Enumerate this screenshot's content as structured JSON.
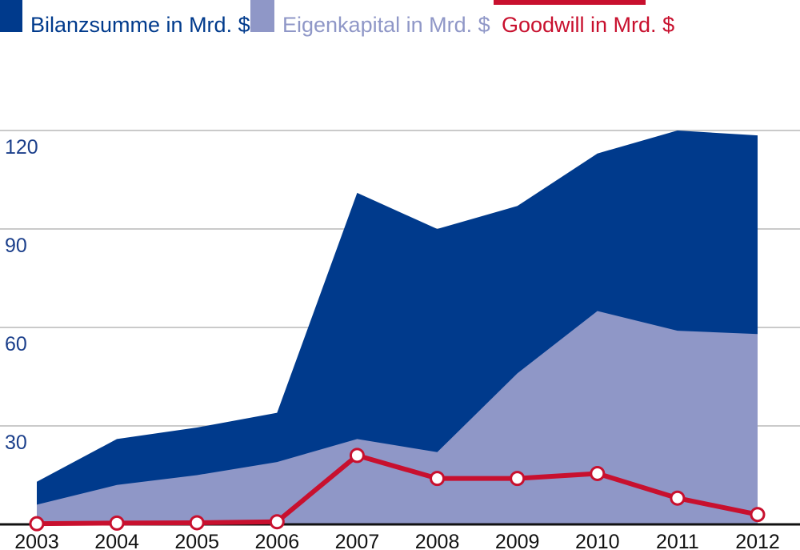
{
  "chart_data": {
    "type": "area",
    "title": "",
    "xlabel": "",
    "ylabel": "",
    "categories": [
      "2003",
      "2004",
      "2005",
      "2006",
      "2007",
      "2008",
      "2009",
      "2010",
      "2011",
      "2012"
    ],
    "ylim": [
      0,
      120
    ],
    "yticks": [
      30,
      60,
      90,
      120
    ],
    "grid": true,
    "legend_position": "top",
    "series": [
      {
        "name": "Bilanzsumme in Mrd. $",
        "type": "area",
        "color": "#003a8c",
        "values": [
          13,
          26,
          29.5,
          34,
          101,
          90,
          97,
          113,
          120,
          118.5
        ]
      },
      {
        "name": "Eigenkapital in Mrd. $",
        "type": "area",
        "color": "#8f97c7",
        "values": [
          6,
          12,
          15,
          19,
          26,
          22,
          46,
          65,
          59,
          58
        ]
      },
      {
        "name": "Goodwill in Mrd. $",
        "type": "line",
        "color": "#c8102e",
        "values": [
          0.2,
          0.4,
          0.5,
          0.8,
          21,
          14,
          14,
          15.5,
          8,
          3
        ]
      }
    ]
  }
}
